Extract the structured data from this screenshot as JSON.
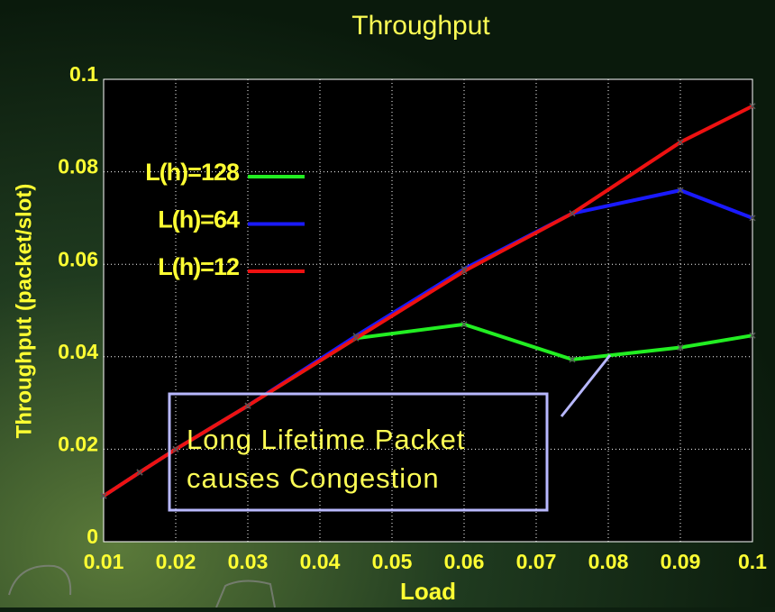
{
  "chart_data": {
    "type": "line",
    "title": "Throughput",
    "x_label": "Load",
    "y_label": "Throughput (packet/slot)",
    "x": [
      0.01,
      0.015,
      0.02,
      0.03,
      0.045,
      0.06,
      0.075,
      0.09,
      0.1
    ],
    "series": [
      {
        "name": "L(h)=128",
        "color": "#22ee22",
        "values": [
          0.0099,
          0.015,
          0.02,
          0.0294,
          0.044,
          0.047,
          0.0394,
          0.042,
          0.0446
        ]
      },
      {
        "name": "L(h)=64",
        "color": "#1a1aff",
        "values": [
          0.0099,
          0.015,
          0.02,
          0.0294,
          0.0445,
          0.059,
          0.071,
          0.076,
          0.07
        ]
      },
      {
        "name": "L(h)=12",
        "color": "#ee1111",
        "values": [
          0.0099,
          0.015,
          0.02,
          0.0294,
          0.044,
          0.0585,
          0.071,
          0.0864,
          0.0942
        ]
      }
    ],
    "xlim": [
      0.01,
      0.1
    ],
    "ylim": [
      0,
      0.1
    ],
    "xticks": [
      0.01,
      0.02,
      0.03,
      0.04,
      0.05,
      0.06,
      0.07,
      0.08,
      0.09,
      0.1
    ],
    "yticks": [
      0,
      0.02,
      0.04,
      0.06,
      0.08,
      0.1
    ],
    "grid": true,
    "annotation": [
      "Long Lifetime Packet",
      "causes Congestion"
    ]
  }
}
